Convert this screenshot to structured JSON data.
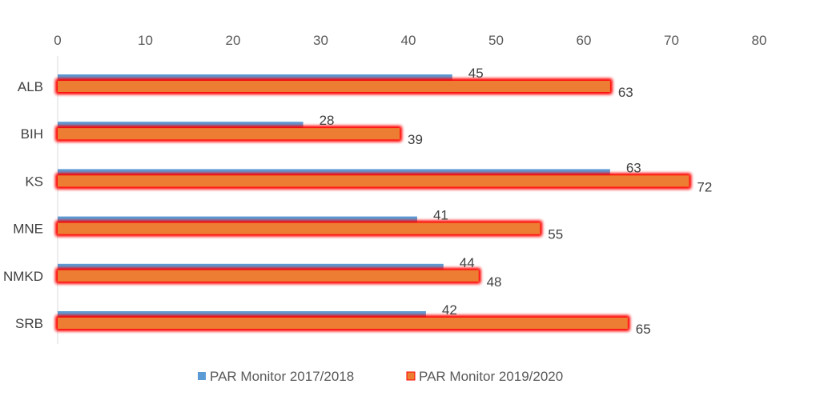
{
  "chart_data": {
    "type": "bar",
    "orientation": "horizontal",
    "categories": [
      "ALB",
      "BIH",
      "KS",
      "MNE",
      "NMKD",
      "SRB"
    ],
    "series": [
      {
        "name": "PAR Monitor 2017/2018",
        "values": [
          45,
          28,
          63,
          41,
          44,
          42
        ],
        "color": "#5B9BD5"
      },
      {
        "name": "PAR Monitor 2019/2020",
        "values": [
          63,
          39,
          72,
          55,
          48,
          65
        ],
        "color": "#ED7D31",
        "highlight": "#FF0000"
      }
    ],
    "xlim": [
      0,
      80
    ],
    "x_ticks": [
      0,
      10,
      20,
      30,
      40,
      50,
      60,
      70,
      80
    ],
    "x_axis_position": "top",
    "grid": false,
    "legend_position": "bottom",
    "title": "",
    "xlabel": "",
    "ylabel": ""
  }
}
